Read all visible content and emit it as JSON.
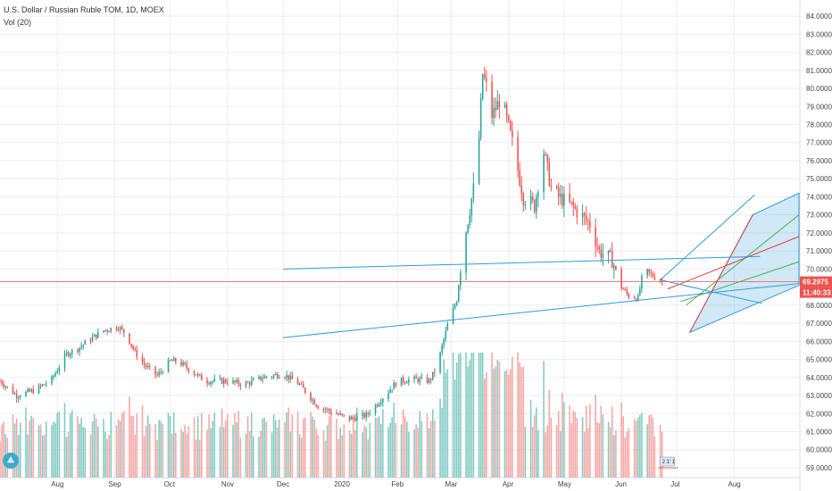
{
  "header": {
    "title": "U.S. Dollar / Russian Ruble TOM, 1D, MOEX",
    "volume_label": "Vol (20)"
  },
  "logo": {
    "glyph": "⟁",
    "icon": "tradingview-logo-icon"
  },
  "flag_label": "2 1' 1",
  "colors": {
    "up": "#26a69a",
    "down": "#ef5350",
    "up_vol": "#82cbc3",
    "down_vol": "#f3a7a5",
    "trendline": "#2d9cdb",
    "price_tag": "#ef5350",
    "grid": "#eeeeee"
  },
  "chart_data": {
    "type": "candlestick",
    "title": "U.S. Dollar / Russian Ruble TOM, 1D, MOEX",
    "indicator": "Vol (20)",
    "last_price": "69.2975",
    "countdown": "11:40:33",
    "ylim": [
      58.8,
      84.4
    ],
    "y_ticks": [
      "84.0000",
      "83.0000",
      "82.0000",
      "81.0000",
      "80.0000",
      "79.0000",
      "78.0000",
      "77.0000",
      "76.0000",
      "75.0000",
      "74.0000",
      "73.0000",
      "72.0000",
      "71.0000",
      "70.0000",
      "69.0000",
      "68.0000",
      "67.0000",
      "66.0000",
      "65.0000",
      "64.0000",
      "63.0000",
      "62.0000",
      "61.0000",
      "60.0000",
      "59.0000"
    ],
    "x_ticks": [
      {
        "label": "Aug",
        "date": "2019-08-01"
      },
      {
        "label": "Sep",
        "date": "2019-09-01"
      },
      {
        "label": "Oct",
        "date": "2019-10-01"
      },
      {
        "label": "Nov",
        "date": "2019-11-01"
      },
      {
        "label": "Dec",
        "date": "2019-12-01"
      },
      {
        "label": "2020",
        "date": "2020-01-01"
      },
      {
        "label": "Feb",
        "date": "2020-02-01"
      },
      {
        "label": "Mar",
        "date": "2020-03-01"
      },
      {
        "label": "Apr",
        "date": "2020-04-01"
      },
      {
        "label": "May",
        "date": "2020-05-01"
      },
      {
        "label": "Jun",
        "date": "2020-06-01"
      },
      {
        "label": "Jul",
        "date": "2020-07-01"
      },
      {
        "label": "Aug",
        "date": "2020-08-01"
      }
    ],
    "xlim": [
      "2019-07-01",
      "2020-09-05"
    ],
    "price_path": [
      [
        "2019-07-01",
        63.8
      ],
      [
        "2019-07-10",
        63.0
      ],
      [
        "2019-07-20",
        63.3
      ],
      [
        "2019-07-29",
        63.9
      ],
      [
        "2019-08-06",
        65.3
      ],
      [
        "2019-08-12",
        65.6
      ],
      [
        "2019-08-20",
        66.2
      ],
      [
        "2019-08-26",
        66.6
      ],
      [
        "2019-09-03",
        66.8
      ],
      [
        "2019-09-07",
        66.4
      ],
      [
        "2019-09-12",
        65.4
      ],
      [
        "2019-09-17",
        64.7
      ],
      [
        "2019-09-24",
        64.1
      ],
      [
        "2019-10-01",
        64.9
      ],
      [
        "2019-10-05",
        64.9
      ],
      [
        "2019-10-12",
        64.4
      ],
      [
        "2019-10-20",
        63.8
      ],
      [
        "2019-10-28",
        63.8
      ],
      [
        "2019-11-01",
        63.8
      ],
      [
        "2019-11-10",
        63.6
      ],
      [
        "2019-11-20",
        64.0
      ],
      [
        "2019-12-01",
        64.2
      ],
      [
        "2019-12-10",
        63.6
      ],
      [
        "2019-12-20",
        62.4
      ],
      [
        "2020-01-01",
        61.9
      ],
      [
        "2020-01-05",
        61.7
      ],
      [
        "2020-01-15",
        61.9
      ],
      [
        "2020-01-25",
        63.0
      ],
      [
        "2020-02-01",
        63.8
      ],
      [
        "2020-02-10",
        63.9
      ],
      [
        "2020-02-18",
        63.8
      ],
      [
        "2020-02-22",
        64.5
      ],
      [
        "2020-02-28",
        66.9
      ],
      [
        "2020-03-04",
        68.3
      ],
      [
        "2020-03-07",
        71.0
      ],
      [
        "2020-03-12",
        73.9
      ],
      [
        "2020-03-15",
        75.5
      ],
      [
        "2020-03-18",
        80.8
      ],
      [
        "2020-03-20",
        80.1
      ],
      [
        "2020-03-23",
        78.5
      ],
      [
        "2020-03-28",
        79.5
      ],
      [
        "2020-04-03",
        77.0
      ],
      [
        "2020-04-09",
        74.0
      ],
      [
        "2020-04-15",
        73.5
      ],
      [
        "2020-04-20",
        76.5
      ],
      [
        "2020-04-24",
        74.5
      ],
      [
        "2020-04-28",
        74.0
      ],
      [
        "2020-05-05",
        73.5
      ],
      [
        "2020-05-10",
        73.0
      ],
      [
        "2020-05-15",
        72.5
      ],
      [
        "2020-05-20",
        71.0
      ],
      [
        "2020-05-27",
        70.5
      ],
      [
        "2020-06-01",
        69.0
      ],
      [
        "2020-06-05",
        68.5
      ],
      [
        "2020-06-10",
        68.4
      ],
      [
        "2020-06-13",
        70.0
      ],
      [
        "2020-06-17",
        69.7
      ],
      [
        "2020-06-23",
        69.3
      ]
    ],
    "annotation_lines": [
      {
        "name": "horizontal-trendline",
        "from": [
          "2019-12-01",
          70.0
        ],
        "to": [
          "2020-08-15",
          70.7
        ]
      },
      {
        "name": "lower-trendline",
        "from": [
          "2019-12-01",
          66.2
        ],
        "to": [
          "2020-09-05",
          69.2
        ]
      },
      {
        "name": "fan-left-line",
        "from": [
          "2020-06-22",
          69.4
        ],
        "to": [
          "2020-08-12",
          74.1
        ]
      },
      {
        "name": "fan-right-line",
        "from": [
          "2020-06-22",
          69.4
        ],
        "to": [
          "2020-08-16",
          68.1
        ]
      }
    ],
    "pitchfork": {
      "outer": [
        [
          "2020-07-08",
          66.5
        ],
        [
          "2020-08-11",
          73.0
        ],
        [
          "2020-09-05",
          74.2
        ],
        [
          "2020-09-05",
          69.1
        ]
      ],
      "median_line": [
        [
          "2020-06-26",
          68.9
        ],
        [
          "2020-09-05",
          71.8
        ]
      ],
      "upper_line": [
        [
          "2020-07-06",
          68.0
        ],
        [
          "2020-09-05",
          73.0
        ]
      ],
      "lower_line": [
        [
          "2020-07-03",
          68.2
        ],
        [
          "2020-09-05",
          70.4
        ]
      ]
    }
  }
}
